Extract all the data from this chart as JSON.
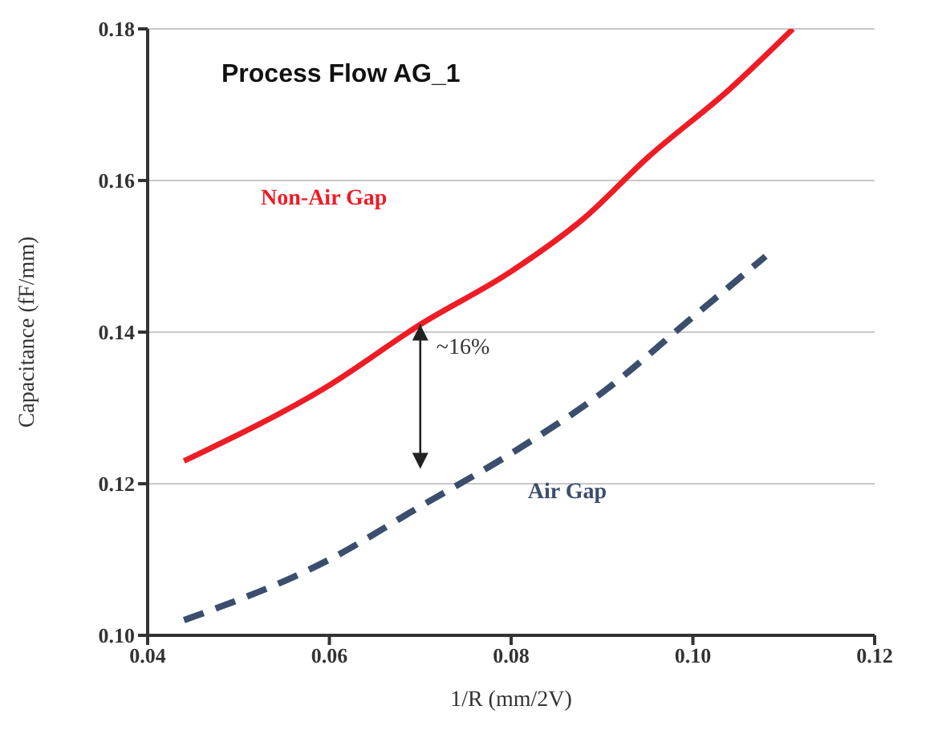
{
  "chart_data": {
    "type": "line",
    "title": "Process Flow AG_1",
    "xlabel": "1/R (mm/2V)",
    "ylabel": "Capacitance (fF/mm)",
    "xlim": [
      0.04,
      0.12
    ],
    "xticks": [
      {
        "value": 0.04,
        "label": "0.04"
      },
      {
        "value": 0.06,
        "label": "0.06"
      },
      {
        "value": 0.08,
        "label": "0.08"
      },
      {
        "value": 0.1,
        "label": "0.10"
      },
      {
        "value": 0.12,
        "label": "0.12"
      }
    ],
    "ylim": [
      0.1,
      0.18
    ],
    "yticks": [
      {
        "value": 0.1,
        "label": "0.10"
      },
      {
        "value": 0.12,
        "label": "0.12"
      },
      {
        "value": 0.14,
        "label": "0.14"
      },
      {
        "value": 0.16,
        "label": "0.16"
      },
      {
        "value": 0.18,
        "label": "0.18"
      }
    ],
    "grid": "y",
    "marker": "none",
    "series": [
      {
        "name": "Non-Air Gap",
        "color": "#ee1c25",
        "line_style": "solid",
        "x": [
          0.044,
          0.06,
          0.07,
          0.08,
          0.088,
          0.095,
          0.104,
          0.111
        ],
        "values": [
          0.123,
          0.133,
          0.141,
          0.148,
          0.155,
          0.163,
          0.172,
          0.18
        ]
      },
      {
        "name": "Air Gap",
        "color": "#3b4e6e",
        "line_style": "dashed",
        "x": [
          0.044,
          0.06,
          0.07,
          0.08,
          0.09,
          0.1,
          0.108
        ],
        "values": [
          0.102,
          0.11,
          0.117,
          0.124,
          0.132,
          0.142,
          0.15
        ]
      }
    ],
    "annotations": [
      {
        "text": "~16%",
        "x": 0.07,
        "y": 0.141
      }
    ]
  }
}
